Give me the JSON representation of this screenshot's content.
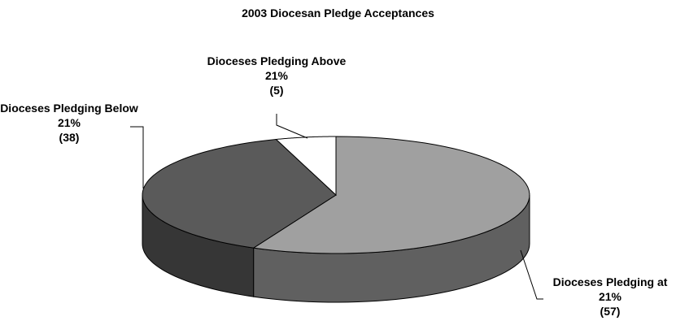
{
  "chart_data": {
    "type": "pie",
    "title": "2003 Diocesan Pledge Acceptances",
    "categories": [
      "Dioceses Pledging at 21%",
      "Dioceses Pledging Below 21%",
      "Dioceses Pledging Above 21%"
    ],
    "values": [
      57,
      38,
      5
    ],
    "value_labels": [
      "(57)",
      "(38)",
      "(5)"
    ],
    "colors": [
      "#a0a0a0",
      "#5a5a5a",
      "#ffffff"
    ]
  }
}
